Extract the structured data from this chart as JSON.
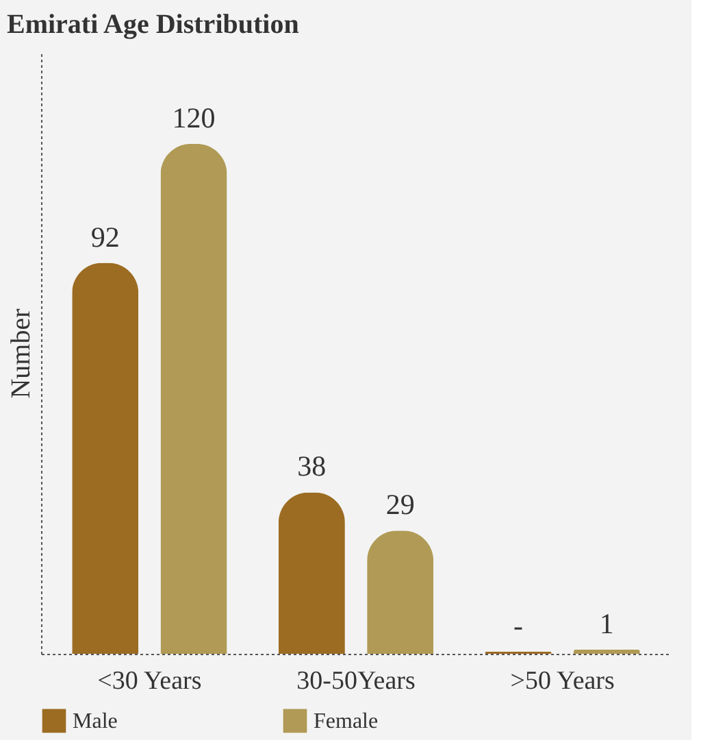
{
  "chart_data": {
    "type": "bar",
    "title": "Emirati Age Distribution",
    "ylabel": "Number",
    "categories": [
      "<30 Years",
      "30-50Years",
      ">50 Years"
    ],
    "series": [
      {
        "name": "Male",
        "color": "#9c6c22",
        "values": [
          92,
          38,
          0.5
        ],
        "value_labels": [
          "92",
          "38",
          "-"
        ]
      },
      {
        "name": "Female",
        "color": "#b09a55",
        "values": [
          120,
          29,
          1
        ],
        "value_labels": [
          "120",
          "29",
          "1"
        ]
      }
    ],
    "legend": "bottom left",
    "grid": false
  }
}
